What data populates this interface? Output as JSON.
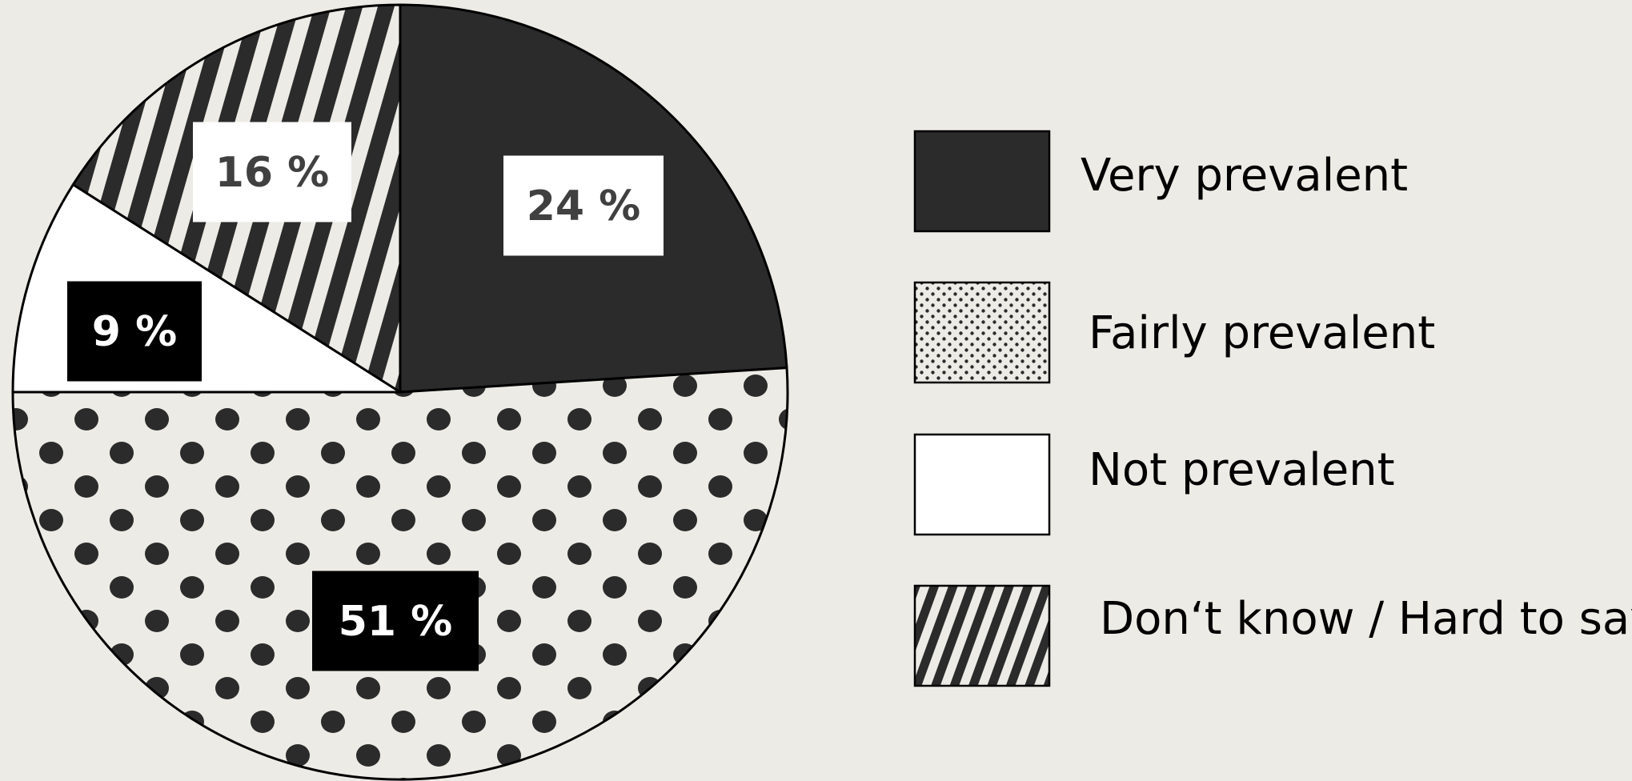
{
  "chart_data": {
    "type": "pie",
    "slices": [
      {
        "name": "Very prevalent",
        "value": 24,
        "label": "24 %",
        "pattern": "solid-dark",
        "label_style": "light-box"
      },
      {
        "name": "Fairly prevalent",
        "value": 51,
        "label": "51 %",
        "pattern": "dots",
        "label_style": "dark-box"
      },
      {
        "name": "Not prevalent",
        "value": 9,
        "label": "9 %",
        "pattern": "blank",
        "label_style": "dark-box"
      },
      {
        "name": "Don‘t know / Hard to say",
        "value": 16,
        "label": "16 %",
        "pattern": "stripes",
        "label_style": "light-box"
      }
    ],
    "legend": {
      "placement": "right",
      "entries": [
        "Very prevalent",
        "Fairly prevalent",
        "Not prevalent",
        "Don‘t know / Hard to say"
      ]
    },
    "start_angle_deg": 0,
    "direction": "clockwise",
    "colors": {
      "background": "#ecebe5",
      "dark": "#2b2b2b",
      "light": "#ecebe5",
      "white": "#ffffff",
      "black": "#000000",
      "label_light_text": "#404040",
      "label_dark_text": "#ffffff",
      "outline": "#000000"
    }
  }
}
